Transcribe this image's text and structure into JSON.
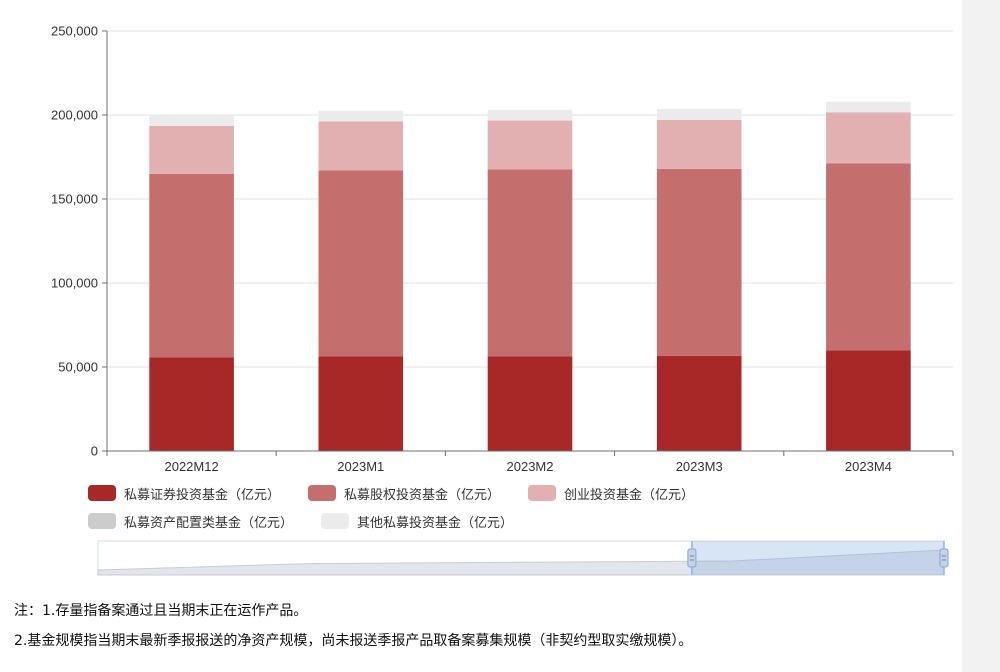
{
  "chart_data": {
    "type": "bar",
    "stacked": true,
    "categories": [
      "2022M12",
      "2023M1",
      "2023M2",
      "2023M3",
      "2023M4"
    ],
    "series": [
      {
        "name": "私募证券投资基金（亿元）",
        "color": "#a82828",
        "values": [
          55800,
          56300,
          56400,
          56600,
          59800
        ]
      },
      {
        "name": "私募股权投资基金（亿元）",
        "color": "#c46e6e",
        "values": [
          109200,
          110800,
          111200,
          111300,
          111400
        ]
      },
      {
        "name": "创业投资基金（亿元）",
        "color": "#e2b0b0",
        "values": [
          28500,
          29100,
          29100,
          29200,
          30400
        ]
      },
      {
        "name": "私募资产配置类基金（亿元）",
        "color": "#cccccc",
        "values": [
          0,
          0,
          0,
          0,
          0
        ]
      },
      {
        "name": "其他私募投资基金（亿元）",
        "color": "#ebebeb",
        "values": [
          6600,
          6400,
          6400,
          6500,
          6300
        ]
      }
    ],
    "yticks": [
      "0",
      "50,000",
      "100,000",
      "150,000",
      "200,000",
      "250,000"
    ],
    "ylim": [
      0,
      250000
    ],
    "grid": true,
    "legend_position": "bottom",
    "data_zoom": {
      "visible_range": "full",
      "selected_end_fraction": 1.0
    }
  },
  "notes": [
    "注：1.存量指备案通过且当期末正在运作产品。",
    "2.基金规模指当期末最新季报报送的净资产规模，尚未报送季报产品取备案募集规模（非契约型取实缴规模）。"
  ]
}
